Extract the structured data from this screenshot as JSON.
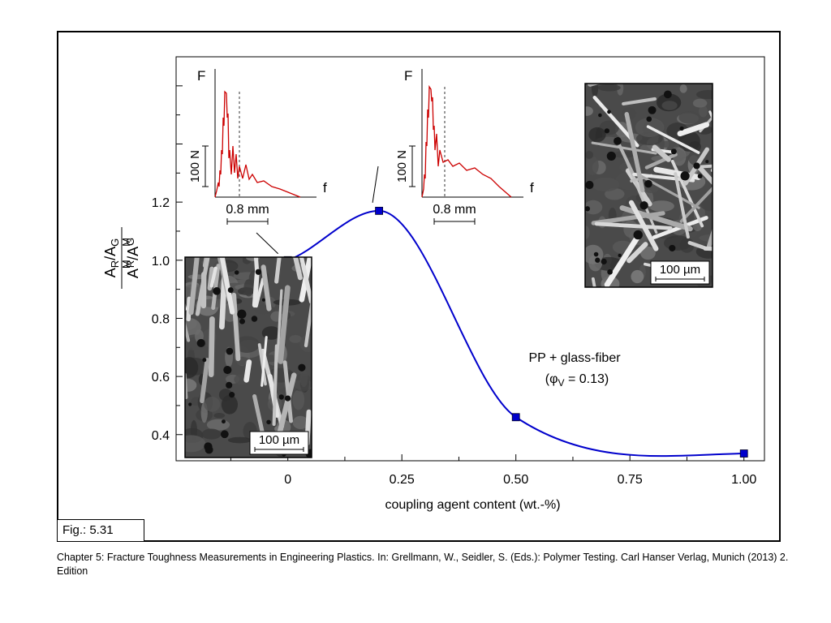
{
  "figure_label": "Fig.: 5.31",
  "caption": "Chapter 5: Fracture Toughness Measurements in Engineering Plastics. In: Grellmann, W., Seidler, S. (Eds.): Polymer Testing. Carl Hanser Verlag, Munich (2013) 2. Edition",
  "chart_data": {
    "type": "line",
    "title": "",
    "xlabel": "coupling agent content (wt.-%)",
    "ylabel": {
      "numerator": "A_R/A_G",
      "denominator": "A_R^M/A_G^M"
    },
    "xlim": [
      -0.245,
      1.045
    ],
    "ylim": [
      0.31,
      1.7
    ],
    "x_ticks": [
      0,
      0.25,
      0.5,
      0.75,
      1.0
    ],
    "x_tick_labels": [
      "0",
      "0.25",
      "0.50",
      "0.75",
      "1.00"
    ],
    "y_ticks": [
      0.4,
      0.6,
      0.8,
      1.0,
      1.2
    ],
    "y_tick_labels": [
      "0.4",
      "0.6",
      "0.8",
      "1.0",
      "1.2"
    ],
    "grid": false,
    "series": [
      {
        "x": [
          0,
          0.2,
          0.5,
          1.0
        ],
        "y": [
          1.0,
          1.17,
          0.46,
          0.335
        ],
        "color": "#0000cc",
        "marker": "square"
      }
    ],
    "annotation": {
      "line1": "PP + glass-fiber",
      "line2_prefix": "(φ",
      "line2_sub": "V",
      "line2_suffix": " = 0.13)"
    },
    "insets": [
      {
        "type": "line",
        "attached_to_x": 0,
        "y_label": "F",
        "x_label": "f",
        "scale_y": "100 N",
        "scale_x": "0.8 mm",
        "curve_color": "#cc0000"
      },
      {
        "type": "line",
        "attached_to_x": 0.2,
        "y_label": "F",
        "x_label": "f",
        "scale_y": "100 N",
        "scale_x": "0.8 mm",
        "curve_color": "#cc0000"
      }
    ],
    "micrographs": [
      {
        "scale_label": "100 µm"
      },
      {
        "scale_label": "100 µm"
      }
    ]
  }
}
